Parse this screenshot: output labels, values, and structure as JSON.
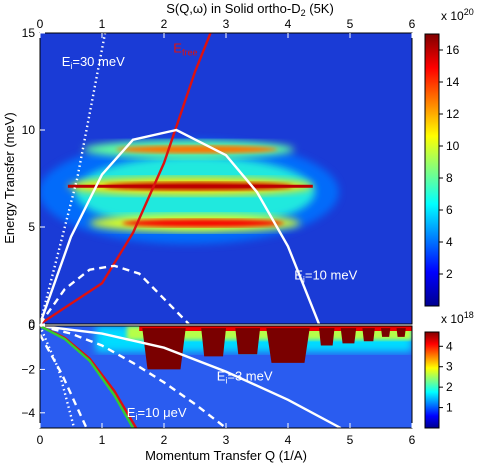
{
  "chart_data": [
    {
      "type": "heatmap",
      "title": "S(Q,ω) in Solid ortho-D",
      "title_subscript": "2",
      "title_suffix": " (5K)",
      "ylabel": "Energy Transfer (meV)",
      "xlim": [
        0,
        6
      ],
      "ylim": [
        0,
        15
      ],
      "x_ticks": [
        "0",
        "1",
        "2",
        "3",
        "4",
        "5",
        "6"
      ],
      "x_top_ticks": [
        "0",
        "1",
        "2",
        "3",
        "4",
        "5",
        "6"
      ],
      "y_ticks": [
        "0",
        "5",
        "10",
        "15"
      ],
      "colorbar": {
        "exponent_label": "x 10",
        "exponent": "20",
        "range": [
          0,
          17
        ],
        "ticks": [
          "2",
          "4",
          "6",
          "8",
          "10",
          "12",
          "14",
          "16"
        ],
        "tick_values": [
          2,
          4,
          6,
          8,
          10,
          12,
          14,
          16
        ]
      },
      "annotations": [
        {
          "base": "E",
          "sub": "i",
          "rest": "=30 meV",
          "color": "#ffffff",
          "x": 0.35,
          "y": 13.3
        },
        {
          "base": "E",
          "sub": "free",
          "rest": "",
          "color": "#dd1111",
          "x": 2.15,
          "y": 14.0
        },
        {
          "base": "E",
          "sub": "i",
          "rest": "=10 meV",
          "color": "#ffffff",
          "x": 4.1,
          "y": 2.3
        }
      ],
      "bands": [
        {
          "label": "bright band",
          "x_range": [
            0.45,
            4.4
          ],
          "y": 7.1,
          "intensity": 16
        },
        {
          "label": "upper band",
          "x_range": [
            0.7,
            4.1
          ],
          "y": 9.0,
          "intensity": 13
        },
        {
          "label": "lower band",
          "x_range": [
            0.8,
            4.2
          ],
          "y": 5.2,
          "intensity": 15
        }
      ],
      "curves": [
        {
          "label": "E_i=30 meV",
          "style": "dotted",
          "color": "#ffffff",
          "points": [
            [
              0,
              0
            ],
            [
              0.6,
              7.5
            ],
            [
              1.05,
              15
            ]
          ]
        },
        {
          "label": "E_free",
          "style": "solid",
          "color": "#dd1111",
          "points": [
            [
              0,
              0
            ],
            [
              1.0,
              2.1
            ],
            [
              1.5,
              4.7
            ],
            [
              2.0,
              8.3
            ],
            [
              2.5,
              13.0
            ],
            [
              2.75,
              15
            ]
          ]
        },
        {
          "label": "E_i=10 meV",
          "style": "solid",
          "color": "#ffffff",
          "points": [
            [
              0,
              0
            ],
            [
              0.5,
              4.5
            ],
            [
              1.0,
              7.7
            ],
            [
              1.5,
              9.5
            ],
            [
              2.2,
              10.0
            ],
            [
              3.0,
              8.7
            ],
            [
              3.5,
              6.8
            ],
            [
              4.0,
              4.0
            ],
            [
              4.5,
              0
            ]
          ]
        },
        {
          "label": "E_i=3 meV",
          "style": "dashed",
          "color": "#ffffff",
          "points": [
            [
              0,
              0
            ],
            [
              0.4,
              1.8
            ],
            [
              0.8,
              2.8
            ],
            [
              1.2,
              3.0
            ],
            [
              1.6,
              2.6
            ],
            [
              2.0,
              1.3
            ],
            [
              2.4,
              0
            ]
          ]
        }
      ]
    },
    {
      "type": "heatmap",
      "xlabel": "Momentum Transfer Q (1/A)",
      "xlim": [
        0,
        6
      ],
      "ylim": [
        -4.7,
        0
      ],
      "x_ticks": [
        "0",
        "1",
        "2",
        "3",
        "4",
        "5",
        "6"
      ],
      "y_ticks": [
        "0",
        "−2",
        "−4"
      ],
      "colorbar": {
        "exponent_label": "x 10",
        "exponent": "18",
        "range": [
          0,
          4.7
        ],
        "ticks": [
          "1",
          "2",
          "3",
          "4"
        ],
        "tick_values": [
          1,
          2,
          3,
          4
        ]
      },
      "annotations": [
        {
          "base": "E",
          "sub": "i",
          "rest": "=3 meV",
          "color": "#ffffff",
          "x": 2.85,
          "y": -2.5
        },
        {
          "base": "E",
          "sub": "i",
          "rest": "=10 μeV",
          "color": "#ffffff",
          "x": 1.4,
          "y": -4.2
        }
      ],
      "curves": [
        {
          "label": "E_i=10 meV",
          "style": "solid",
          "color": "#ffffff",
          "points": [
            [
              0,
              0
            ],
            [
              1.0,
              -0.35
            ],
            [
              2.0,
              -1.0
            ],
            [
              3.0,
              -2.1
            ],
            [
              4.0,
              -3.4
            ],
            [
              4.85,
              -4.7
            ]
          ]
        },
        {
          "label": "E_i=3 meV",
          "style": "dashed",
          "color": "#ffffff",
          "points": [
            [
              0,
              0
            ],
            [
              0.5,
              -0.35
            ],
            [
              1.0,
              -0.9
            ],
            [
              1.5,
              -1.7
            ],
            [
              2.0,
              -2.6
            ],
            [
              2.5,
              -3.6
            ],
            [
              3.0,
              -4.7
            ]
          ]
        },
        {
          "label": "E_free",
          "style": "solid",
          "color": "#dd1111",
          "points": [
            [
              0,
              0
            ],
            [
              0.4,
              -0.55
            ],
            [
              0.8,
              -1.5
            ],
            [
              1.2,
              -3.0
            ],
            [
              1.55,
              -4.7
            ]
          ]
        },
        {
          "label": "E_i=10 μeV",
          "style": "solid",
          "color": "#33cc33",
          "points": [
            [
              0,
              0
            ],
            [
              0.4,
              -0.6
            ],
            [
              0.8,
              -1.6
            ],
            [
              1.2,
              -3.2
            ],
            [
              1.5,
              -4.7
            ]
          ]
        },
        {
          "label": "E_i=30 meV",
          "style": "dotted",
          "color": "#ffffff",
          "points": [
            [
              0,
              0
            ],
            [
              0.3,
              -2.0
            ],
            [
              0.55,
              -4.7
            ]
          ]
        },
        {
          "label": "E_i=30 meV",
          "style": "dashed",
          "color": "#ffffff",
          "points": [
            [
              0,
              -0.4
            ],
            [
              0.35,
              -2.2
            ],
            [
              0.75,
              -4.7
            ]
          ]
        }
      ],
      "peaks": [
        {
          "x_range": [
            1.65,
            2.35
          ],
          "y_top": -0.1,
          "y_bottom": -2.0
        },
        {
          "x_range": [
            2.6,
            3.0
          ],
          "y_top": -0.1,
          "y_bottom": -1.4
        },
        {
          "x_range": [
            3.15,
            3.55
          ],
          "y_top": -0.1,
          "y_bottom": -1.3
        },
        {
          "x_range": [
            3.65,
            4.35
          ],
          "y_top": -0.1,
          "y_bottom": -1.7
        },
        {
          "x_range": [
            4.5,
            4.75
          ],
          "y_top": -0.1,
          "y_bottom": -0.9
        },
        {
          "x_range": [
            4.85,
            5.1
          ],
          "y_top": -0.1,
          "y_bottom": -0.8
        },
        {
          "x_range": [
            5.2,
            5.4
          ],
          "y_top": -0.1,
          "y_bottom": -0.7
        },
        {
          "x_range": [
            5.5,
            5.65
          ],
          "y_top": -0.1,
          "y_bottom": -0.5
        },
        {
          "x_range": [
            5.75,
            5.9
          ],
          "y_top": -0.1,
          "y_bottom": -0.5
        }
      ]
    }
  ]
}
